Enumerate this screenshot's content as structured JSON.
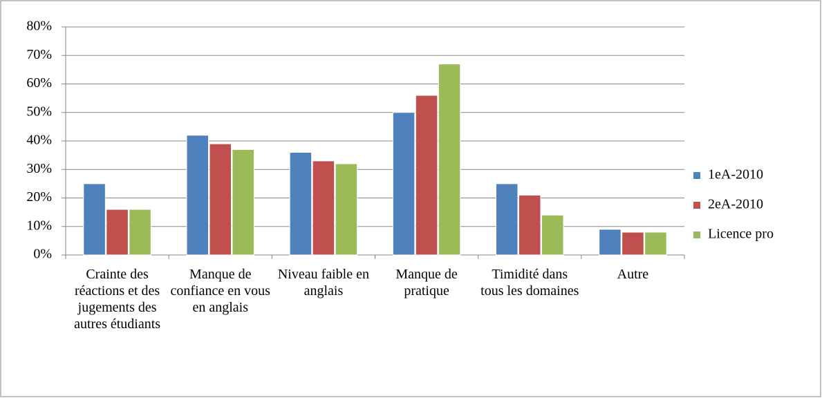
{
  "chart_data": {
    "type": "bar",
    "categories": [
      "Crainte des réactions et des jugements des autres étudiants",
      "Manque de confiance en vous en anglais",
      "Niveau faible en anglais",
      "Manque de pratique",
      "Timidité dans tous les domaines",
      "Autre"
    ],
    "series": [
      {
        "name": "1eA-2010",
        "color": "#4f81bd",
        "values": [
          25,
          42,
          36,
          50,
          25,
          9
        ]
      },
      {
        "name": "2eA-2010",
        "color": "#c0504d",
        "values": [
          16,
          39,
          33,
          56,
          21,
          8
        ]
      },
      {
        "name": "Licence pro",
        "color": "#9bbb59",
        "values": [
          16,
          37,
          32,
          67,
          14,
          8
        ]
      }
    ],
    "ylim": [
      0,
      80
    ],
    "yticks": [
      {
        "value": 0,
        "label": "0%"
      },
      {
        "value": 10,
        "label": "10%"
      },
      {
        "value": 20,
        "label": "20%"
      },
      {
        "value": 30,
        "label": "30%"
      },
      {
        "value": 40,
        "label": "40%"
      },
      {
        "value": 50,
        "label": "50%"
      },
      {
        "value": 60,
        "label": "60%"
      },
      {
        "value": 70,
        "label": "70%"
      },
      {
        "value": 80,
        "label": "80%"
      }
    ],
    "grid": true,
    "legend": "right"
  }
}
